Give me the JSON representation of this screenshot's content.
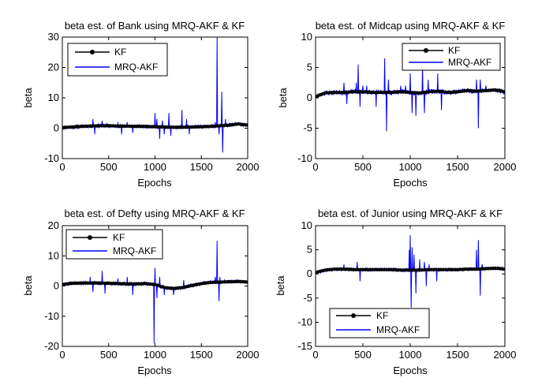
{
  "chart_data": [
    {
      "type": "line",
      "title": "beta est. of Bank using MRQ-AKF & KF",
      "xlabel": "Epochs",
      "ylabel": "beta",
      "xlim": [
        0,
        2000
      ],
      "ylim": [
        -10,
        30
      ],
      "xticks": [
        0,
        500,
        1000,
        1500,
        2000
      ],
      "yticks": [
        -10,
        0,
        10,
        20,
        30
      ],
      "legend_position": "top-left",
      "series": [
        {
          "name": "KF",
          "color": "#000000",
          "marker": "dot",
          "x": [
            0,
            100,
            200,
            300,
            400,
            500,
            600,
            700,
            800,
            900,
            1000,
            1100,
            1200,
            1300,
            1400,
            1500,
            1600,
            1700,
            1800,
            1900,
            2000
          ],
          "y": [
            0.2,
            0.4,
            0.6,
            0.7,
            0.8,
            0.8,
            0.7,
            0.7,
            0.6,
            0.6,
            0.5,
            0.4,
            0.3,
            0.3,
            0.4,
            0.5,
            0.6,
            0.8,
            1.0,
            1.4,
            1.0
          ]
        },
        {
          "name": "MRQ-AKF",
          "color": "#0000ff",
          "noise": 0.6,
          "seed": 11,
          "x": [
            0,
            100,
            200,
            300,
            400,
            500,
            600,
            700,
            800,
            900,
            1000,
            1100,
            1200,
            1300,
            1400,
            1500,
            1600,
            1700,
            1800,
            1900,
            2000
          ],
          "y": [
            0.2,
            0.4,
            0.6,
            0.7,
            0.8,
            0.8,
            0.7,
            0.7,
            0.6,
            0.6,
            0.5,
            0.4,
            0.3,
            0.3,
            0.4,
            0.5,
            0.6,
            0.8,
            1.0,
            1.4,
            1.0
          ],
          "spikes": [
            [
              330,
              3
            ],
            [
              350,
              -2
            ],
            [
              430,
              2.5
            ],
            [
              600,
              2
            ],
            [
              640,
              -2
            ],
            [
              700,
              2
            ],
            [
              760,
              -1.5
            ],
            [
              1000,
              5
            ],
            [
              1020,
              3
            ],
            [
              1050,
              -3.5
            ],
            [
              1080,
              2.5
            ],
            [
              1100,
              -2
            ],
            [
              1150,
              5
            ],
            [
              1170,
              -2.5
            ],
            [
              1290,
              6
            ],
            [
              1340,
              3
            ],
            [
              1370,
              -2
            ],
            [
              1650,
              2
            ],
            [
              1670,
              30
            ],
            [
              1690,
              -2
            ],
            [
              1720,
              12
            ],
            [
              1730,
              -8
            ],
            [
              1760,
              3
            ]
          ]
        }
      ]
    },
    {
      "type": "line",
      "title": "beta est. of Midcap using MRQ-AKF & KF",
      "xlabel": "Epochs",
      "ylabel": "beta",
      "xlim": [
        0,
        2000
      ],
      "ylim": [
        -10,
        10
      ],
      "xticks": [
        0,
        500,
        1000,
        1500,
        2000
      ],
      "yticks": [
        -10,
        -5,
        0,
        5,
        10
      ],
      "legend_position": "top-right",
      "series": [
        {
          "name": "KF",
          "color": "#000000",
          "marker": "dot",
          "x": [
            0,
            100,
            200,
            300,
            400,
            500,
            600,
            700,
            800,
            900,
            1000,
            1100,
            1200,
            1300,
            1400,
            1500,
            1600,
            1700,
            1800,
            1900,
            2000
          ],
          "y": [
            0.2,
            0.8,
            0.9,
            0.9,
            1.0,
            1.0,
            0.9,
            0.9,
            0.9,
            1.0,
            0.9,
            0.8,
            1.0,
            1.1,
            0.9,
            1.0,
            1.2,
            1.1,
            1.2,
            1.3,
            1.0
          ]
        },
        {
          "name": "MRQ-AKF",
          "color": "#0000ff",
          "noise": 0.4,
          "seed": 23,
          "x": [
            0,
            100,
            200,
            300,
            400,
            500,
            600,
            700,
            800,
            900,
            1000,
            1100,
            1200,
            1300,
            1400,
            1500,
            1600,
            1700,
            1800,
            1900,
            2000
          ],
          "y": [
            0.2,
            0.8,
            0.9,
            0.9,
            1.0,
            1.0,
            0.9,
            0.9,
            0.9,
            1.0,
            0.9,
            0.8,
            1.0,
            1.1,
            0.9,
            1.0,
            1.2,
            1.1,
            1.2,
            1.3,
            1.0
          ],
          "spikes": [
            [
              300,
              2.5
            ],
            [
              330,
              -1
            ],
            [
              430,
              2.5
            ],
            [
              450,
              5.5
            ],
            [
              470,
              -1.5
            ],
            [
              500,
              2
            ],
            [
              540,
              2
            ],
            [
              640,
              -1.5
            ],
            [
              730,
              6.5
            ],
            [
              750,
              -5.5
            ],
            [
              770,
              3
            ],
            [
              900,
              2
            ],
            [
              950,
              2
            ],
            [
              1000,
              4
            ],
            [
              1020,
              -2.5
            ],
            [
              1060,
              -3
            ],
            [
              1130,
              5.5
            ],
            [
              1150,
              -2.5
            ],
            [
              1190,
              3
            ],
            [
              1290,
              4
            ],
            [
              1330,
              -2
            ],
            [
              1700,
              3
            ],
            [
              1720,
              -5
            ],
            [
              1740,
              3
            ],
            [
              1800,
              2
            ]
          ]
        }
      ]
    },
    {
      "type": "line",
      "title": "beta est. of Defty using MRQ-AKF & KF",
      "xlabel": "Epochs",
      "ylabel": "beta",
      "xlim": [
        0,
        2000
      ],
      "ylim": [
        -20,
        20
      ],
      "xticks": [
        0,
        500,
        1000,
        1500,
        2000
      ],
      "yticks": [
        -20,
        -10,
        0,
        10,
        20
      ],
      "legend_position": "top-left",
      "series": [
        {
          "name": "KF",
          "color": "#000000",
          "marker": "dot",
          "x": [
            0,
            100,
            200,
            300,
            400,
            500,
            600,
            700,
            800,
            900,
            1000,
            1100,
            1200,
            1300,
            1400,
            1500,
            1600,
            1700,
            1800,
            1900,
            2000
          ],
          "y": [
            0.5,
            0.9,
            1.0,
            1.0,
            1.0,
            0.9,
            0.8,
            0.7,
            0.7,
            0.8,
            0.5,
            -0.5,
            -0.8,
            -0.5,
            0.2,
            0.8,
            1.2,
            1.3,
            1.4,
            1.5,
            1.3
          ]
        },
        {
          "name": "MRQ-AKF",
          "color": "#0000ff",
          "noise": 0.6,
          "seed": 37,
          "x": [
            0,
            100,
            200,
            300,
            400,
            500,
            600,
            700,
            800,
            900,
            1000,
            1100,
            1200,
            1300,
            1400,
            1500,
            1600,
            1700,
            1800,
            1900,
            2000
          ],
          "y": [
            0.5,
            0.9,
            1.0,
            1.0,
            1.0,
            0.9,
            0.8,
            0.7,
            0.7,
            0.8,
            0.5,
            -0.5,
            -0.8,
            -0.5,
            0.2,
            0.8,
            1.2,
            1.3,
            1.4,
            1.5,
            1.3
          ],
          "spikes": [
            [
              300,
              3
            ],
            [
              330,
              -2
            ],
            [
              430,
              5
            ],
            [
              460,
              -2.5
            ],
            [
              600,
              2.5
            ],
            [
              700,
              3
            ],
            [
              760,
              -3
            ],
            [
              990,
              -19
            ],
            [
              1000,
              6
            ],
            [
              1020,
              -4
            ],
            [
              1050,
              3
            ],
            [
              1100,
              -3
            ],
            [
              1200,
              -3
            ],
            [
              1310,
              2
            ],
            [
              1650,
              3
            ],
            [
              1670,
              15
            ],
            [
              1690,
              -5
            ],
            [
              1700,
              3
            ],
            [
              1750,
              2
            ]
          ]
        }
      ]
    },
    {
      "type": "line",
      "title": "beta est. of Junior using MRQ-AKF & KF",
      "xlabel": "Epochs",
      "ylabel": "beta",
      "xlim": [
        0,
        2000
      ],
      "ylim": [
        -15,
        10
      ],
      "xticks": [
        0,
        500,
        1000,
        1500,
        2000
      ],
      "yticks": [
        -15,
        -10,
        -5,
        0,
        5,
        10
      ],
      "legend_position": "bottom-left",
      "series": [
        {
          "name": "KF",
          "color": "#000000",
          "marker": "dot",
          "x": [
            0,
            100,
            200,
            300,
            400,
            500,
            600,
            700,
            800,
            900,
            1000,
            1100,
            1200,
            1300,
            1400,
            1500,
            1600,
            1700,
            1800,
            1900,
            2000
          ],
          "y": [
            0.3,
            0.8,
            1.0,
            1.0,
            0.9,
            0.9,
            0.9,
            0.9,
            0.9,
            0.8,
            0.8,
            0.8,
            0.9,
            0.9,
            0.9,
            0.9,
            1.0,
            1.0,
            1.1,
            1.2,
            1.0
          ]
        },
        {
          "name": "MRQ-AKF",
          "color": "#0000ff",
          "noise": 0.35,
          "seed": 53,
          "x": [
            0,
            100,
            200,
            300,
            400,
            500,
            600,
            700,
            800,
            900,
            1000,
            1100,
            1200,
            1300,
            1400,
            1500,
            1600,
            1700,
            1800,
            1900,
            2000
          ],
          "y": [
            0.3,
            0.8,
            1.0,
            1.0,
            0.9,
            0.9,
            0.9,
            0.9,
            0.9,
            0.8,
            0.8,
            0.8,
            0.9,
            0.9,
            0.9,
            0.9,
            1.0,
            1.0,
            1.1,
            1.2,
            1.0
          ],
          "spikes": [
            [
              300,
              2
            ],
            [
              440,
              2.5
            ],
            [
              470,
              -1.5
            ],
            [
              990,
              5
            ],
            [
              1000,
              8
            ],
            [
              1010,
              -7
            ],
            [
              1020,
              5.5
            ],
            [
              1040,
              4
            ],
            [
              1060,
              -4
            ],
            [
              1100,
              3
            ],
            [
              1150,
              2.5
            ],
            [
              1170,
              -2.5
            ],
            [
              1200,
              2
            ],
            [
              1280,
              -1.5
            ],
            [
              1700,
              5
            ],
            [
              1720,
              7
            ],
            [
              1740,
              -4.5
            ],
            [
              1760,
              2
            ]
          ]
        }
      ]
    }
  ]
}
